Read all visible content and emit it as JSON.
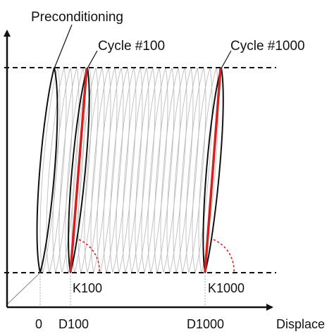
{
  "labels": {
    "preconditioning": "Preconditioning",
    "cycle_100": "Cycle #100",
    "cycle_1000": "Cycle #1000",
    "k100": "K100",
    "k1000": "K1000"
  },
  "x_axis": {
    "label": "Displace",
    "ticks": [
      "0",
      "D100",
      "D1000"
    ]
  },
  "colors": {
    "line": "#111111",
    "faint_loop": "#bdbdbd",
    "highlight": "#d62020",
    "dotted_guide": "#aaaaaa"
  },
  "icons": {
    "y_axis_arrow": "arrow-up-icon",
    "x_axis_arrow": "arrow-right-icon"
  }
}
